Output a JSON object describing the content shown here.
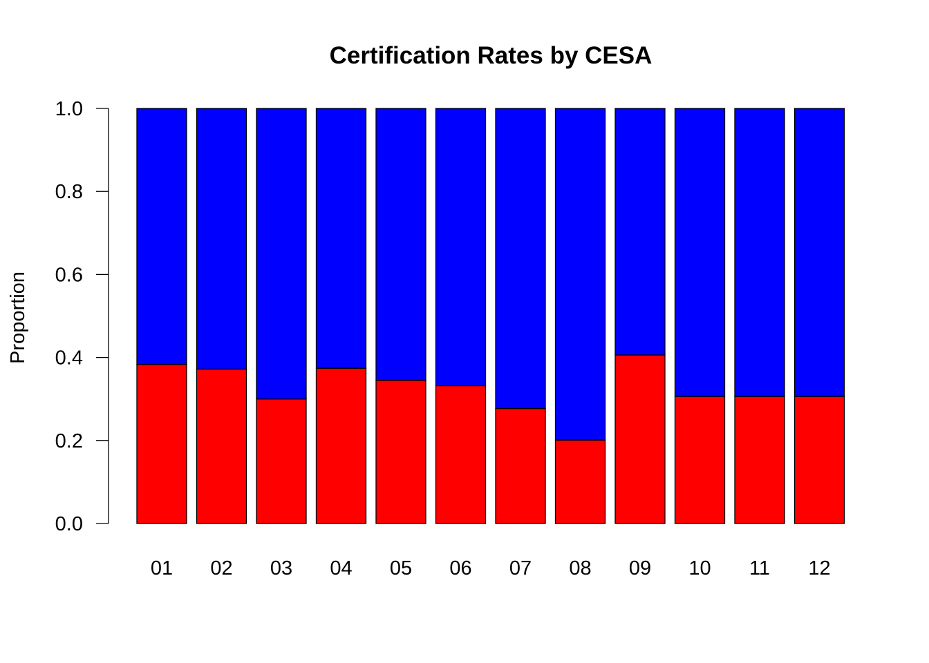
{
  "chart_data": {
    "type": "bar",
    "stacked": true,
    "title": "Certification Rates by CESA",
    "xlabel": "",
    "ylabel": "Proportion",
    "ylim": [
      0,
      1
    ],
    "yticks": [
      "0.0",
      "0.2",
      "0.4",
      "0.6",
      "0.8",
      "1.0"
    ],
    "categories": [
      "01",
      "02",
      "03",
      "04",
      "05",
      "06",
      "07",
      "08",
      "09",
      "10",
      "11",
      "12"
    ],
    "series": [
      {
        "color": "#ff0000",
        "values": [
          0.383,
          0.372,
          0.3,
          0.374,
          0.345,
          0.332,
          0.277,
          0.201,
          0.406,
          0.306,
          0.306,
          0.306
        ]
      },
      {
        "color": "#0000ff",
        "values": [
          0.617,
          0.628,
          0.7,
          0.626,
          0.655,
          0.668,
          0.723,
          0.799,
          0.594,
          0.694,
          0.694,
          0.694
        ]
      }
    ],
    "grid": false,
    "legend": "none"
  }
}
